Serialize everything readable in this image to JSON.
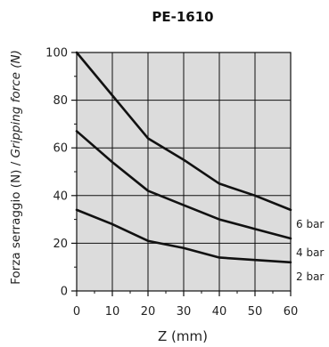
{
  "chart_data": {
    "type": "line",
    "title": "PE-1610",
    "xlabel": "Z (mm)",
    "ylabel_it": "Forza serraggio (N)",
    "ylabel_sep": " / ",
    "ylabel_en": "Gripping force (N)",
    "xlim": [
      0,
      60
    ],
    "ylim": [
      0,
      100
    ],
    "xticks": [
      0,
      10,
      20,
      30,
      40,
      50,
      60
    ],
    "yticks": [
      0,
      20,
      40,
      60,
      80,
      100
    ],
    "x_minor_step": 5,
    "y_minor_step": 10,
    "grid": true,
    "background": "#dcdcdc",
    "line_color": "#111111",
    "series": [
      {
        "name": "6 bar",
        "x": [
          0,
          10,
          20,
          30,
          40,
          50,
          60
        ],
        "values": [
          100,
          82,
          64,
          55,
          45,
          40,
          34
        ]
      },
      {
        "name": "4 bar",
        "x": [
          0,
          10,
          20,
          30,
          40,
          50,
          60
        ],
        "values": [
          67,
          54,
          42,
          36,
          30,
          26,
          22
        ]
      },
      {
        "name": "2 bar",
        "x": [
          0,
          10,
          20,
          30,
          40,
          50,
          60
        ],
        "values": [
          34,
          28,
          21,
          18,
          14,
          13,
          12
        ]
      }
    ]
  }
}
